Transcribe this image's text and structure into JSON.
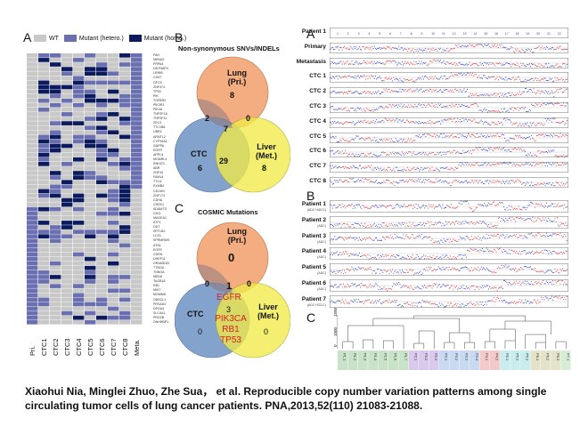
{
  "panelA_left": {
    "letter": "A",
    "legend": [
      {
        "label": "WT",
        "color": "#c8c8c8"
      },
      {
        "label": "Mutant (hetero.)",
        "color": "#6a6fb0"
      },
      {
        "label": "Mutant (homo.)",
        "color": "#0c1a5e"
      }
    ],
    "columns": [
      "Pri.",
      "CTC1",
      "CTC2",
      "CTC3",
      "CTC4",
      "CTC5",
      "CTC6",
      "CTC7",
      "CTC8",
      "Meta."
    ],
    "genes": [
      "FAH",
      "MKNA2",
      "FRPA4",
      "DNTNAP4",
      "LRRIB",
      "CD97",
      "OFC5",
      "ZNF474",
      "TP53",
      "PIK",
      "TGFBR2",
      "PIK3R1",
      "PIK3A",
      "TNFSF18",
      "TNFSF11",
      "ZEC3",
      "TTC1B8",
      "UBR4",
      "ARNTL2",
      "CYP39A1",
      "GAPPA",
      "EGFR",
      "APPL5",
      "MGMRL4",
      "RNHCS",
      "ABR",
      "ZNF44",
      "FAM14",
      "TTCA",
      "EXMB4",
      "CELMN",
      "ZNF174",
      "CDHA",
      "CHEK1",
      "ADAMTS",
      "GIG1",
      "MAGEA1",
      "ATF1",
      "OUT",
      "SPTLB2",
      "LCS1",
      "SPRMRMS",
      "ATN1",
      "EGFR",
      "CDEN",
      "DHEP11",
      "GRAMD1B",
      "TTNGA",
      "TNNGA",
      "MED8",
      "TAGB18",
      "RB1",
      "MKI7",
      "MGMMD",
      "OBSCL1",
      "PRSAD2",
      "DPGA3",
      "SLC4A1",
      "PRG2B",
      "DNHHBP1"
    ]
  },
  "panelB_left": {
    "letter": "B",
    "title": "Non-synonymous SNVs/INDELs",
    "circle_labels": {
      "lung": "Lung (Pri.)",
      "liver": "Liver (Met.)",
      "ctc": "CTC"
    },
    "counts": {
      "lung_only": "8",
      "liver_only": "8",
      "ctc_only": "6",
      "lung_ctc": "2",
      "lung_liver": "0",
      "ctc_liver": "29",
      "all": "7"
    }
  },
  "panelC_left": {
    "letter": "C",
    "title": "COSMIC Mutations",
    "circle_labels": {
      "lung": "Lung (Pri.)",
      "liver": "Liver (Met.)",
      "ctc": "CTC"
    },
    "counts": {
      "lung_only": "0",
      "liver_only": "0",
      "ctc_only": "0",
      "lung_ctc": "0",
      "lung_liver": "0",
      "ctc_liver": "3",
      "all": "1"
    },
    "genes_all": [
      "EGFR"
    ],
    "genes_ctc_liver": [
      "PIK3CA",
      "RB1",
      "TP53"
    ]
  },
  "panelA_right": {
    "letter": "A",
    "tracks": [
      "Patient 1",
      "Primary",
      "Metastasis",
      "CTC 1",
      "CTC 2",
      "CTC 3",
      "CTC 4",
      "CTC 5",
      "CTC 6",
      "CTC 7",
      "CTC 8"
    ]
  },
  "panelB_right": {
    "letter": "B",
    "tracks": [
      {
        "name": "Patient 1",
        "sub": "(ADC+ADC1)"
      },
      {
        "name": "Patient 2",
        "sub": "(ADC)"
      },
      {
        "name": "Patient 3",
        "sub": "(ADC)"
      },
      {
        "name": "Patient 4",
        "sub": "(ADC)"
      },
      {
        "name": "Patient 5",
        "sub": "(ADC)"
      },
      {
        "name": "Patient 6",
        "sub": "(ADC)"
      },
      {
        "name": "Patient 7",
        "sub": "(ADC+SCLC)"
      }
    ]
  },
  "panelC_right": {
    "letter": "C",
    "y_ticks": [
      "1500",
      "1000",
      "0"
    ],
    "leaves": [
      {
        "label": "P1.1",
        "color": "#c9e3c9"
      },
      {
        "label": "P1.2",
        "color": "#c9e3c9"
      },
      {
        "label": "P1.3",
        "color": "#c9e3c9"
      },
      {
        "label": "P1.4",
        "color": "#c9e3c9"
      },
      {
        "label": "P1.5",
        "color": "#c9e3c9"
      },
      {
        "label": "P1.6",
        "color": "#c9e3c9"
      },
      {
        "label": "P1.7",
        "color": "#c9e3c9"
      },
      {
        "label": "P2.1",
        "color": "#d9c9ea"
      },
      {
        "label": "P2.2",
        "color": "#d9c9ea"
      },
      {
        "label": "P2.3",
        "color": "#d9c9ea"
      },
      {
        "label": "P3.1",
        "color": "#c9d9f0"
      },
      {
        "label": "P3.2",
        "color": "#c9d9f0"
      },
      {
        "label": "P3.3",
        "color": "#c9d9f0"
      },
      {
        "label": "P3.4",
        "color": "#c9d9f0"
      },
      {
        "label": "P4.1",
        "color": "#f3c9c9"
      },
      {
        "label": "P4.2",
        "color": "#f3c9c9"
      },
      {
        "label": "P5.1",
        "color": "#c9ecec"
      },
      {
        "label": "P5.2",
        "color": "#c9ecec"
      },
      {
        "label": "P5.3",
        "color": "#c9ecec"
      },
      {
        "label": "P6.1",
        "color": "#e3e3c9"
      },
      {
        "label": "P6.2",
        "color": "#e3e3c9"
      },
      {
        "label": "P6.3",
        "color": "#e3e3c9"
      },
      {
        "label": "P7.1",
        "color": "#d7ecd7"
      }
    ]
  },
  "caption": {
    "line1": "Xiaohui Nia, Minglei Zhuo, Zhe Sua， et al. Reproducible copy number variation patterns among single",
    "line2": "circulating tumor cells of lung cancer patients. PNA,2013,52(110) 21083-21088."
  },
  "colors": {
    "wt": "#c8c8c8",
    "hetero": "#6a6fb0",
    "homo": "#0c1a5e",
    "lung": "#f4a97a",
    "liver": "#f2ea4a",
    "ctc": "#7a9cc8",
    "cnv_red": "#d8343c",
    "cnv_blue": "#2d3bc8"
  }
}
